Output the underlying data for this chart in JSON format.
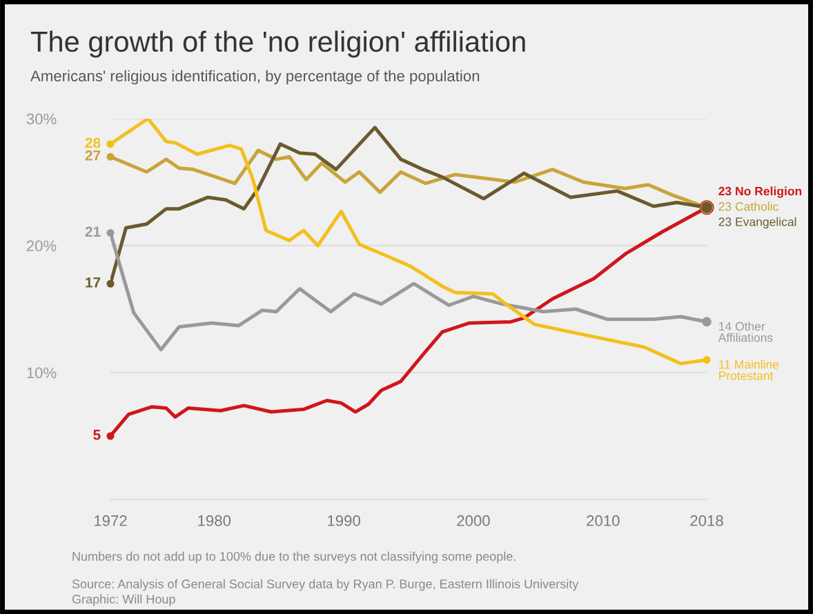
{
  "chart_data": {
    "type": "line",
    "title": "The growth of the 'no religion' affiliation",
    "subtitle": "Americans' religious identification, by percentage of the population",
    "annotations": [
      "Numbers do not add up to 100% due to the surveys not classifying some people.",
      "Source: Analysis of General Social Survey data by Ryan P. Burge, Eastern Illinois University",
      "Graphic: Will Houp"
    ],
    "xlim": [
      1972,
      2018
    ],
    "xticks": [
      1972,
      1980,
      1990,
      2000,
      2010,
      2018
    ],
    "ylim": [
      0,
      30
    ],
    "yticks": [
      {
        "value": 10,
        "label": "10%"
      },
      {
        "value": 20,
        "label": "20%"
      },
      {
        "value": 30,
        "label": "30%"
      }
    ],
    "grid": "y",
    "legend": false,
    "line_style": "solid",
    "series": [
      {
        "name": "No Religion",
        "color": "#d0161b",
        "x": [
          1972,
          1973.4,
          1975.2,
          1976.3,
          1977,
          1978,
          1980.5,
          1982.3,
          1984.4,
          1986.9,
          1988.7,
          1989.8,
          1990.9,
          1991.9,
          1992.9,
          1994.4,
          1996.1,
          1997.6,
          1999.7,
          2002.9,
          2003.9,
          2006.1,
          2009.3,
          2011.8,
          2014.6,
          2018
        ],
        "values": [
          5,
          6.7,
          7.3,
          7.2,
          6.5,
          7.2,
          7.0,
          7.4,
          6.9,
          7.1,
          7.8,
          7.6,
          6.9,
          7.5,
          8.6,
          9.3,
          11.4,
          13.2,
          13.9,
          14.0,
          14.3,
          15.8,
          17.4,
          19.4,
          21.1,
          23
        ],
        "value_labels": [
          "5",
          null,
          null,
          null,
          null,
          null,
          null,
          null,
          null,
          null,
          null,
          null,
          null,
          null,
          null,
          null,
          null,
          null,
          null,
          null,
          null,
          null,
          null,
          null,
          null,
          "23"
        ]
      },
      {
        "name": "Catholic",
        "color": "#c9a43a",
        "x": [
          1972,
          1974.8,
          1976.3,
          1977.3,
          1978.4,
          1981.6,
          1983.4,
          1984.8,
          1985.8,
          1987.1,
          1988.3,
          1990.1,
          1991.2,
          1992.8,
          1994.4,
          1996.3,
          1998.6,
          2003.2,
          2006.1,
          2008.5,
          2011.7,
          2013.5,
          2015.3,
          2018
        ],
        "values": [
          27,
          25.8,
          26.8,
          26.1,
          26.0,
          24.9,
          27.5,
          26.8,
          27.0,
          25.2,
          26.5,
          25.0,
          25.8,
          24.2,
          25.8,
          24.9,
          25.6,
          25.0,
          26.0,
          25.0,
          24.5,
          24.8,
          24.0,
          23
        ],
        "value_labels": [
          "27",
          null,
          null,
          null,
          null,
          null,
          null,
          null,
          null,
          null,
          null,
          null,
          null,
          null,
          null,
          null,
          null,
          null,
          null,
          null,
          null,
          null,
          null,
          "23"
        ]
      },
      {
        "name": "Evangelical",
        "color": "#6b5a2e",
        "x": [
          1972,
          1973.2,
          1974.8,
          1976.3,
          1977.3,
          1979.5,
          1980.9,
          1982.3,
          1983.4,
          1985.1,
          1986.6,
          1987.8,
          1989.4,
          1992.4,
          1994.4,
          1996.1,
          1997.6,
          2000.8,
          2003.9,
          2007.5,
          2011.1,
          2013.9,
          2015.7,
          2018
        ],
        "values": [
          17,
          21.4,
          21.7,
          22.9,
          22.9,
          23.8,
          23.6,
          22.9,
          24.5,
          28.0,
          27.3,
          27.2,
          26.0,
          29.3,
          26.8,
          26.0,
          25.4,
          23.7,
          25.7,
          23.8,
          24.3,
          23.1,
          23.4,
          23
        ],
        "value_labels": [
          "17",
          null,
          null,
          null,
          null,
          null,
          null,
          null,
          null,
          null,
          null,
          null,
          null,
          null,
          null,
          null,
          null,
          null,
          null,
          null,
          null,
          null,
          null,
          "23"
        ]
      },
      {
        "name": "Other\nAffiliations",
        "color": "#999999",
        "x": [
          1972,
          1973.8,
          1975.9,
          1977.3,
          1979.8,
          1981.9,
          1983.7,
          1984.8,
          1986.6,
          1989,
          1990.8,
          1992.9,
          1995.4,
          1998.1,
          2000,
          2002.2,
          2005.4,
          2007.9,
          2010.3,
          2013.9,
          2016,
          2018
        ],
        "values": [
          21,
          14.7,
          11.8,
          13.6,
          13.9,
          13.7,
          14.9,
          14.8,
          16.6,
          14.8,
          16.2,
          15.4,
          17.0,
          15.3,
          16.0,
          15.4,
          14.8,
          15.0,
          14.2,
          14.2,
          14.4,
          14
        ],
        "value_labels": [
          "21",
          null,
          null,
          null,
          null,
          null,
          null,
          null,
          null,
          null,
          null,
          null,
          null,
          null,
          null,
          null,
          null,
          null,
          null,
          null,
          null,
          "14"
        ]
      },
      {
        "name": "Mainline\nProtestant",
        "color": "#f2c01e",
        "x": [
          1972,
          1974.9,
          1976.3,
          1977,
          1978.7,
          1981.2,
          1982.1,
          1983,
          1984,
          1985.8,
          1986.9,
          1988,
          1989.8,
          1991.2,
          1992.6,
          1995.1,
          1997.6,
          1998.6,
          2001.5,
          2002.5,
          2004.7,
          2008.9,
          2013.2,
          2016,
          2018
        ],
        "values": [
          28,
          30,
          28.2,
          28.1,
          27.2,
          27.9,
          27.6,
          25.2,
          21.2,
          20.4,
          21.2,
          20.0,
          22.7,
          20.1,
          19.5,
          18.4,
          16.8,
          16.3,
          16.2,
          15.4,
          13.8,
          12.9,
          12.0,
          10.7,
          11
        ],
        "value_labels": [
          "28",
          null,
          null,
          null,
          null,
          null,
          null,
          null,
          null,
          null,
          null,
          null,
          null,
          null,
          null,
          null,
          null,
          null,
          null,
          null,
          null,
          null,
          null,
          null,
          "11"
        ]
      }
    ]
  }
}
